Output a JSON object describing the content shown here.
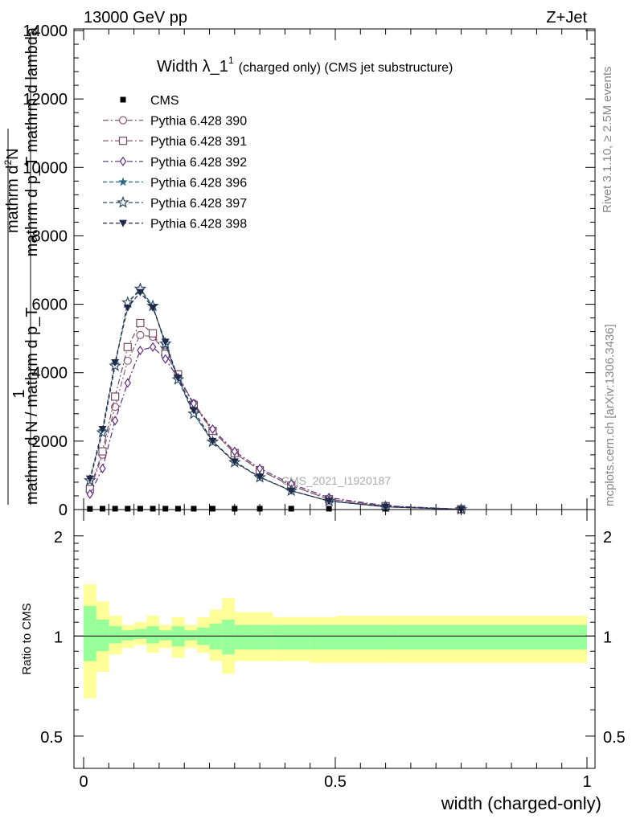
{
  "header": {
    "left": "13000 GeV pp",
    "right": "Z+Jet"
  },
  "side": {
    "rivet": "Rivet 3.1.10, ≥ 2.5M events",
    "mcplots": "mcplots.cern.ch [arXiv:1306.3436]"
  },
  "chart_data": [
    {
      "type": "line",
      "title_main": "Width λ_1",
      "title_sup": "1",
      "title_rest": "(charged only) (CMS jet substructure)",
      "ylabel_top": "1",
      "ylabel_num": "mathrm d",
      "ylabel_num_sup": "2",
      "ylabel_num_rest": "N",
      "ylabel_den": "mathrm d p_T mathrm d lambda",
      "ylabel_left": "mathrm d N / mathrm d p_T",
      "ylabel_left_sub": "T",
      "watermark": "CMS_2021_I1920187",
      "xlim": [
        0,
        1
      ],
      "ylim": [
        0,
        14000
      ],
      "yticks": [
        0,
        2000,
        4000,
        6000,
        8000,
        10000,
        12000,
        14000
      ],
      "ytick_labels": [
        "0",
        "2000",
        "4000",
        "6000",
        "8000",
        "10000",
        "12000",
        "14000"
      ],
      "legend_position": "top-left",
      "x": [
        0.0125,
        0.0375,
        0.0625,
        0.0875,
        0.1125,
        0.1375,
        0.1625,
        0.1875,
        0.21875,
        0.25625,
        0.3,
        0.35,
        0.4125,
        0.4875,
        0.6,
        0.75
      ],
      "series": [
        {
          "name": "CMS",
          "color": "#000000",
          "marker": "square",
          "dash": "none",
          "values": [
            20,
            25,
            25,
            25,
            25,
            25,
            25,
            25,
            25,
            25,
            25,
            25,
            25,
            25,
            25,
            25
          ]
        },
        {
          "name": "Pythia 6.428 390",
          "color": "#8c5a7a",
          "marker": "circle",
          "dash": "7,3,2,3",
          "values": [
            550,
            1600,
            3000,
            4350,
            5100,
            5050,
            4600,
            3900,
            3100,
            2300,
            1650,
            1150,
            700,
            300,
            100,
            10
          ]
        },
        {
          "name": "Pythia 6.428 391",
          "color": "#7a4a5e",
          "marker": "square-open",
          "dash": "7,3,2,3",
          "values": [
            600,
            1700,
            3300,
            4750,
            5450,
            5150,
            4550,
            3950,
            3050,
            2300,
            1650,
            1150,
            700,
            300,
            100,
            10
          ]
        },
        {
          "name": "Pythia 6.428 392",
          "color": "#5a2d82",
          "marker": "diamond",
          "dash": "7,3,2,3",
          "values": [
            450,
            1200,
            2600,
            3700,
            4650,
            4750,
            4400,
            3850,
            3100,
            2350,
            1700,
            1200,
            750,
            350,
            110,
            10
          ]
        },
        {
          "name": "Pythia 6.428 396",
          "color": "#2e6b80",
          "marker": "star",
          "dash": "5,3",
          "values": [
            850,
            2300,
            4250,
            6050,
            6400,
            5950,
            4800,
            3850,
            2800,
            2000,
            1400,
            950,
            550,
            250,
            80,
            5
          ]
        },
        {
          "name": "Pythia 6.428 397",
          "color": "#2c4a63",
          "marker": "star-open",
          "dash": "5,3",
          "values": [
            850,
            2250,
            4200,
            6050,
            6450,
            5950,
            4850,
            3800,
            2800,
            1980,
            1380,
            940,
            550,
            250,
            80,
            5
          ]
        },
        {
          "name": "Pythia 6.428 398",
          "color": "#1f2a4a",
          "marker": "triangle-down",
          "dash": "5,3",
          "values": [
            900,
            2350,
            4300,
            5900,
            6350,
            5900,
            4900,
            3850,
            2900,
            2000,
            1400,
            950,
            550,
            250,
            80,
            5
          ]
        }
      ]
    },
    {
      "type": "area",
      "ylabel": "Ratio to CMS",
      "xlabel": "width (charged-only)",
      "xlim": [
        0,
        1
      ],
      "ylim": [
        0.4,
        2.4
      ],
      "xticks": [
        0,
        0.5,
        1
      ],
      "xtick_labels": [
        "0",
        "0.5",
        "1"
      ],
      "yticks": [
        0.5,
        1,
        2
      ],
      "ytick_labels": [
        "0.5",
        "1",
        "2"
      ],
      "reference_line": 1,
      "inner_band_color": "#99ff99",
      "outer_band_color": "#ffff99",
      "bins": [
        0,
        0.025,
        0.05,
        0.075,
        0.1,
        0.125,
        0.15,
        0.175,
        0.2,
        0.225,
        0.25,
        0.275,
        0.3,
        0.325,
        0.375,
        0.45,
        0.5,
        0.625,
        0.75,
        1.0
      ],
      "outer_low": [
        0.65,
        0.78,
        0.88,
        0.92,
        0.94,
        0.89,
        0.92,
        0.86,
        0.92,
        0.89,
        0.84,
        0.77,
        0.84,
        0.84,
        0.84,
        0.83,
        0.83,
        0.83,
        0.83
      ],
      "outer_high": [
        1.43,
        1.27,
        1.15,
        1.08,
        1.1,
        1.15,
        1.08,
        1.14,
        1.08,
        1.14,
        1.2,
        1.3,
        1.18,
        1.18,
        1.14,
        1.14,
        1.15,
        1.15,
        1.15
      ],
      "inner_low": [
        0.84,
        0.9,
        0.95,
        0.97,
        0.98,
        0.95,
        0.97,
        0.93,
        0.97,
        0.94,
        0.91,
        0.88,
        0.91,
        0.91,
        0.91,
        0.91,
        0.91,
        0.91,
        0.91
      ],
      "inner_high": [
        1.23,
        1.12,
        1.07,
        1.04,
        1.05,
        1.07,
        1.04,
        1.07,
        1.04,
        1.06,
        1.09,
        1.12,
        1.08,
        1.08,
        1.08,
        1.08,
        1.08,
        1.08,
        1.08
      ]
    }
  ]
}
